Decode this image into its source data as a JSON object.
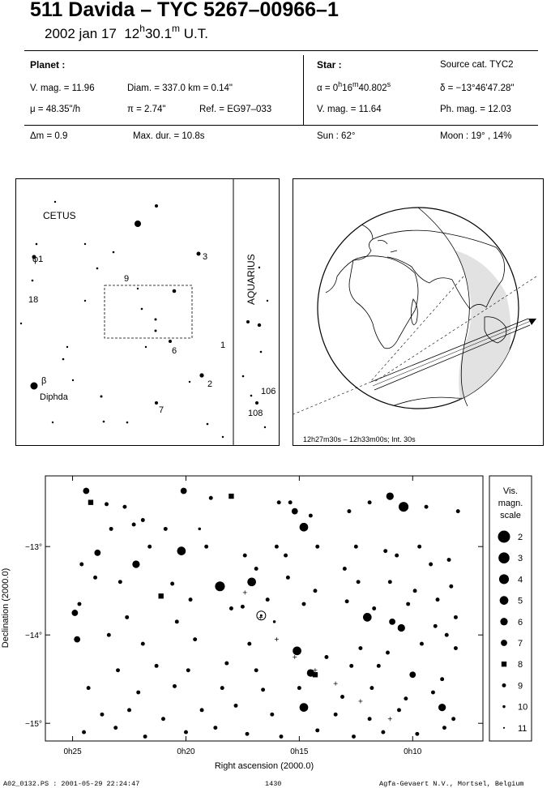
{
  "header": {
    "title": "511 Davida  –  TYC 5267–00966–1",
    "date": "2002 jan 17",
    "time_h": "12",
    "time_hsup": "h",
    "time_m": "30.1",
    "time_msup": "m",
    "time_ut": "U.T."
  },
  "planet": {
    "heading": "Planet :",
    "vmag": "V. mag. = 11.96",
    "diam": "Diam. = 337.0 km = 0.14\"",
    "mu": "μ =  48.35\"/h",
    "pi": "π =  2.74\"",
    "ref": "Ref. = EG97–033",
    "dm": "Δm = 0.9",
    "maxdur": "Max. dur. = 10.8s"
  },
  "star": {
    "heading": "Star :",
    "source": "Source cat.  TYC2",
    "alpha_pre": "α =  0",
    "alpha_h": "h",
    "alpha_mid": "16",
    "alpha_m": "m",
    "alpha_post": "40.802",
    "alpha_s": "s",
    "delta": "δ = −13°46'47.28\"",
    "vmag": "V. mag. = 11.64",
    "phmag": "Ph. mag. = 12.03",
    "sun": "Sun :  62°",
    "moon": "Moon :  19° , 14%"
  },
  "finder": {
    "constellations": [
      "CETUS",
      "AQUARIUS"
    ],
    "labels": [
      "φ1",
      "18",
      "9",
      "3",
      "6",
      "1",
      "2",
      "7",
      "β",
      "Diphda",
      "106",
      "108"
    ]
  },
  "globe": {
    "caption": "12h27m30s – 12h33m00s; Int. 30s"
  },
  "chart_data": {
    "type": "scatter",
    "xlabel": "Right ascension (2000.0)",
    "ylabel": "Declination (2000.0)",
    "x_ticks": [
      "0h25",
      "0h20",
      "0h15",
      "0h10"
    ],
    "y_ticks": [
      "−13°",
      "−14°",
      "−15°"
    ],
    "x_tick_min": [
      25,
      20,
      15,
      10
    ],
    "y_tick_deg": [
      -13,
      -14,
      -15
    ],
    "target": {
      "ra_min": 16.68,
      "dec_deg": -13.78
    },
    "stars": [
      [
        24.4,
        -12.37,
        7
      ],
      [
        24.2,
        -12.5,
        8
      ],
      [
        23.5,
        -12.52,
        9
      ],
      [
        22.7,
        -12.55,
        9
      ],
      [
        21.9,
        -12.7,
        9
      ],
      [
        20.1,
        -12.37,
        7
      ],
      [
        18.9,
        -12.45,
        9
      ],
      [
        18.0,
        -12.43,
        8
      ],
      [
        15.9,
        -12.5,
        9
      ],
      [
        15.4,
        -12.5,
        9
      ],
      [
        15.2,
        -12.6,
        7
      ],
      [
        14.8,
        -12.78,
        5
      ],
      [
        14.5,
        -12.65,
        9
      ],
      [
        12.8,
        -12.6,
        9
      ],
      [
        11.9,
        -12.5,
        9
      ],
      [
        11.0,
        -12.43,
        6
      ],
      [
        10.4,
        -12.55,
        4
      ],
      [
        9.4,
        -12.55,
        9
      ],
      [
        8.0,
        -12.6,
        9
      ],
      [
        20.9,
        -12.8,
        9
      ],
      [
        22.3,
        -12.75,
        9
      ],
      [
        23.3,
        -12.8,
        9
      ],
      [
        19.4,
        -12.8,
        10
      ],
      [
        24.6,
        -13.2,
        9
      ],
      [
        23.9,
        -13.07,
        7
      ],
      [
        21.6,
        -13.0,
        9
      ],
      [
        20.2,
        -13.05,
        5
      ],
      [
        19.1,
        -13.0,
        9
      ],
      [
        17.4,
        -13.1,
        9
      ],
      [
        16.0,
        -13.0,
        9
      ],
      [
        14.2,
        -13.0,
        9
      ],
      [
        12.5,
        -13.0,
        9
      ],
      [
        11.2,
        -13.05,
        9
      ],
      [
        9.7,
        -13.0,
        9
      ],
      [
        8.4,
        -13.15,
        9
      ],
      [
        22.2,
        -13.2,
        6
      ],
      [
        16.9,
        -13.25,
        9
      ],
      [
        15.6,
        -13.1,
        9
      ],
      [
        13.0,
        -13.25,
        9
      ],
      [
        10.7,
        -13.1,
        9
      ],
      [
        9.2,
        -13.2,
        9
      ],
      [
        24.0,
        -13.35,
        9
      ],
      [
        22.9,
        -13.4,
        9
      ],
      [
        20.6,
        -13.42,
        9
      ],
      [
        18.5,
        -13.45,
        4
      ],
      [
        17.1,
        -13.4,
        5
      ],
      [
        15.5,
        -13.35,
        9
      ],
      [
        14.3,
        -13.5,
        9
      ],
      [
        12.4,
        -13.4,
        9
      ],
      [
        11.0,
        -13.4,
        9
      ],
      [
        9.9,
        -13.5,
        9
      ],
      [
        8.3,
        -13.45,
        9
      ],
      [
        24.7,
        -13.65,
        9
      ],
      [
        21.1,
        -13.56,
        8
      ],
      [
        19.8,
        -13.6,
        9
      ],
      [
        18.0,
        -13.7,
        9
      ],
      [
        16.4,
        -13.6,
        9
      ],
      [
        14.8,
        -13.65,
        9
      ],
      [
        12.9,
        -13.62,
        9
      ],
      [
        11.7,
        -13.7,
        9
      ],
      [
        10.2,
        -13.65,
        9
      ],
      [
        8.9,
        -13.6,
        9
      ],
      [
        24.9,
        -13.75,
        7
      ],
      [
        22.6,
        -13.8,
        9
      ],
      [
        20.4,
        -13.85,
        9
      ],
      [
        17.5,
        -13.68,
        9
      ],
      [
        16.1,
        -13.85,
        10
      ],
      [
        12.0,
        -13.8,
        5
      ],
      [
        10.9,
        -13.85,
        7
      ],
      [
        10.5,
        -13.92,
        6
      ],
      [
        9.0,
        -13.9,
        9
      ],
      [
        8.1,
        -13.8,
        9
      ],
      [
        24.8,
        -14.05,
        7
      ],
      [
        23.4,
        -14.0,
        9
      ],
      [
        21.9,
        -14.1,
        9
      ],
      [
        19.6,
        -14.05,
        9
      ],
      [
        17.2,
        -14.1,
        9
      ],
      [
        15.1,
        -14.18,
        5
      ],
      [
        13.8,
        -14.25,
        9
      ],
      [
        12.3,
        -14.15,
        9
      ],
      [
        11.1,
        -14.2,
        9
      ],
      [
        9.6,
        -14.1,
        9
      ],
      [
        8.5,
        -14.0,
        9
      ],
      [
        23.0,
        -14.4,
        9
      ],
      [
        21.3,
        -14.35,
        9
      ],
      [
        19.9,
        -14.4,
        9
      ],
      [
        18.2,
        -14.32,
        9
      ],
      [
        16.9,
        -14.4,
        9
      ],
      [
        14.5,
        -14.43,
        6
      ],
      [
        14.3,
        -14.45,
        8
      ],
      [
        12.7,
        -14.35,
        9
      ],
      [
        11.5,
        -14.35,
        9
      ],
      [
        10.0,
        -14.45,
        7
      ],
      [
        8.7,
        -14.5,
        9
      ],
      [
        24.3,
        -14.6,
        9
      ],
      [
        22.1,
        -14.65,
        9
      ],
      [
        20.5,
        -14.58,
        9
      ],
      [
        18.4,
        -14.6,
        9
      ],
      [
        16.6,
        -14.62,
        9
      ],
      [
        15.0,
        -14.6,
        9
      ],
      [
        13.1,
        -14.7,
        9
      ],
      [
        11.8,
        -14.6,
        9
      ],
      [
        10.3,
        -14.72,
        9
      ],
      [
        9.1,
        -14.65,
        9
      ],
      [
        23.7,
        -14.9,
        9
      ],
      [
        22.5,
        -14.85,
        9
      ],
      [
        21.0,
        -14.95,
        9
      ],
      [
        19.3,
        -14.85,
        9
      ],
      [
        17.8,
        -14.8,
        9
      ],
      [
        16.2,
        -14.9,
        9
      ],
      [
        14.8,
        -14.82,
        5
      ],
      [
        13.4,
        -14.9,
        9
      ],
      [
        11.9,
        -14.95,
        9
      ],
      [
        10.6,
        -14.85,
        9
      ],
      [
        8.7,
        -14.82,
        6
      ],
      [
        8.2,
        -14.95,
        9
      ],
      [
        24.5,
        -15.1,
        9
      ],
      [
        23.1,
        -15.05,
        9
      ],
      [
        21.8,
        -15.15,
        9
      ],
      [
        20.0,
        -15.1,
        9
      ],
      [
        18.7,
        -15.05,
        9
      ],
      [
        17.3,
        -15.12,
        9
      ],
      [
        15.8,
        -15.15,
        9
      ],
      [
        14.2,
        -15.08,
        9
      ],
      [
        12.6,
        -15.15,
        9
      ],
      [
        11.3,
        -15.1,
        9
      ],
      [
        9.8,
        -15.12,
        9
      ],
      [
        8.6,
        -15.05,
        9
      ],
      [
        8.1,
        -14.15,
        9
      ]
    ],
    "track": [
      [
        17.4,
        -13.52
      ],
      [
        16.7,
        -13.8
      ],
      [
        16.0,
        -14.05
      ],
      [
        15.2,
        -14.25
      ],
      [
        14.3,
        -14.4
      ],
      [
        13.4,
        -14.55
      ],
      [
        12.3,
        -14.75
      ],
      [
        11.0,
        -14.95
      ]
    ],
    "scale": {
      "heading": [
        "Vis.",
        "magn.",
        "scale"
      ],
      "mags": [
        "2",
        "3",
        "4",
        "5",
        "6",
        "7",
        "8",
        "9",
        "10",
        "11"
      ]
    }
  },
  "footer": {
    "file": "A02_0132.PS : 2001-05-29 22:24:47",
    "page": "1430",
    "credit": "Agfa-Gevaert N.V., Mortsel, Belgium"
  }
}
